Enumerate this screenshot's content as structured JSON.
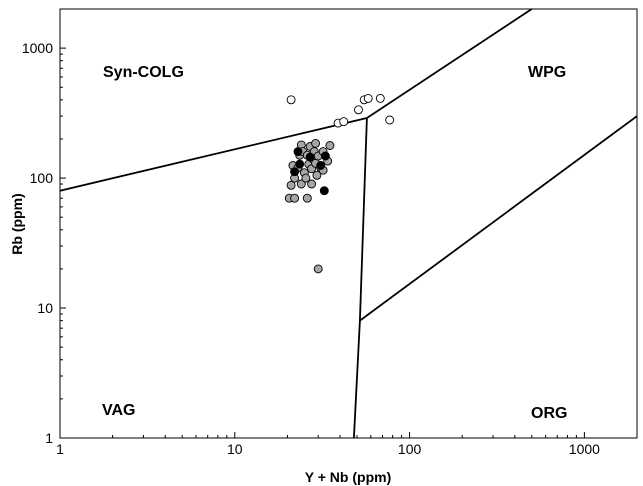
{
  "chart_data": {
    "type": "scatter",
    "title": "",
    "xlabel": "Y + Nb (ppm)",
    "ylabel": "Rb (ppm)",
    "xscale": "log",
    "yscale": "log",
    "xlim": [
      1,
      2000
    ],
    "ylim": [
      1,
      2000
    ],
    "x_ticks": [
      {
        "value": 1,
        "label": "1"
      },
      {
        "value": 10,
        "label": "10"
      },
      {
        "value": 100,
        "label": "100"
      },
      {
        "value": 1000,
        "label": "1000"
      }
    ],
    "y_ticks": [
      {
        "value": 1,
        "label": "1"
      },
      {
        "value": 10,
        "label": "10"
      },
      {
        "value": 100,
        "label": "100"
      },
      {
        "value": 1000,
        "label": "1000"
      }
    ],
    "grid": false,
    "region_labels": [
      {
        "text": "Syn-COLG",
        "x": 3.2,
        "y": 700
      },
      {
        "text": "WPG",
        "x": 520,
        "y": 700
      },
      {
        "text": "VAG",
        "x": 3.0,
        "y": 1.9
      },
      {
        "text": "ORG",
        "x": 560,
        "y": 1.8
      }
    ],
    "boundaries": [
      {
        "name": "syncolg-vag",
        "points": [
          [
            1,
            80
          ],
          [
            57,
            290
          ]
        ]
      },
      {
        "name": "syncolg-wpg",
        "points": [
          [
            57,
            290
          ],
          [
            500,
            2000
          ]
        ]
      },
      {
        "name": "vag-wpg-orig",
        "points": [
          [
            57,
            290
          ],
          [
            52,
            8
          ],
          [
            48,
            1
          ]
        ]
      },
      {
        "name": "wpg-org",
        "points": [
          [
            52,
            8
          ],
          [
            2000,
            300
          ]
        ]
      }
    ],
    "series": [
      {
        "fill": "#ffffff",
        "points": [
          [
            21,
            400
          ],
          [
            39,
            265
          ],
          [
            42,
            272
          ],
          [
            51,
            335
          ],
          [
            55,
            400
          ],
          [
            58,
            410
          ],
          [
            68,
            410
          ],
          [
            77,
            280
          ]
        ]
      },
      {
        "fill": "#a6a6a6",
        "points": [
          [
            20.5,
            70
          ],
          [
            21,
            88
          ],
          [
            21.5,
            125
          ],
          [
            22,
            70
          ],
          [
            22,
            100
          ],
          [
            23,
            120
          ],
          [
            23.5,
            150
          ],
          [
            24,
            180
          ],
          [
            24,
            90
          ],
          [
            25,
            110
          ],
          [
            25.5,
            100
          ],
          [
            26,
            70
          ],
          [
            26.5,
            128
          ],
          [
            27,
            175
          ],
          [
            27.5,
            118
          ],
          [
            27.5,
            90
          ],
          [
            28,
            140
          ],
          [
            28.5,
            160
          ],
          [
            29,
            130
          ],
          [
            29,
            185
          ],
          [
            30,
            148
          ],
          [
            30,
            20
          ],
          [
            31,
            120
          ],
          [
            32,
            115
          ],
          [
            32,
            160
          ],
          [
            34,
            135
          ],
          [
            35,
            178
          ],
          [
            24.5,
            160
          ],
          [
            26,
            150
          ],
          [
            29.5,
            105
          ]
        ]
      },
      {
        "fill": "#000000",
        "points": [
          [
            22,
            112
          ],
          [
            23,
            160
          ],
          [
            23.5,
            128
          ],
          [
            27,
            145
          ],
          [
            31,
            125
          ],
          [
            33,
            148
          ],
          [
            32.5,
            80
          ]
        ]
      }
    ]
  }
}
